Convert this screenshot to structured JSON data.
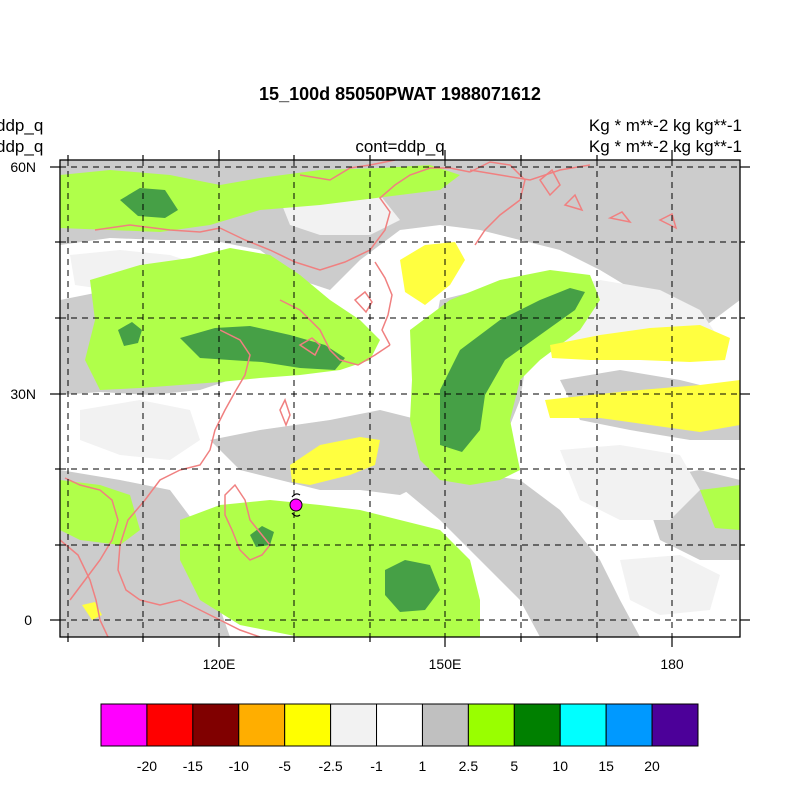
{
  "title": "15_100d 85050PWAT  1988071612",
  "left_labels": [
    "ddp_q",
    "ddp_q"
  ],
  "center_label": "cont=ddp_q",
  "right_labels": [
    "Kg  * m**-2 kg kg**-1",
    "Kg  * m**-2 kg kg**-1"
  ],
  "lat_ticks": [
    "60N",
    "30N",
    "0"
  ],
  "lon_ticks": [
    "120E",
    "150E",
    "180"
  ],
  "colorbar": {
    "colors": [
      "#ff00ff",
      "#ff0000",
      "#800000",
      "#ffae00",
      "#ffff00",
      "#f2f2f2",
      "#ffffff",
      "#c0c0c0",
      "#99ff00",
      "#008000",
      "#00ffff",
      "#0099ff",
      "#4c0099"
    ],
    "labels": [
      "-20",
      "-15",
      "-10",
      "-5",
      "-2.5",
      "-1",
      "1",
      "2.5",
      "5",
      "10",
      "15",
      "20"
    ]
  },
  "fill_colors": {
    "light_gray": "#f2f2f2",
    "gray": "#cccccc",
    "light_green": "#b0ff4a",
    "dark_green": "#46a046",
    "yellow": "#ffff40",
    "coast": "#f08080",
    "marker": "#ff00ff"
  }
}
